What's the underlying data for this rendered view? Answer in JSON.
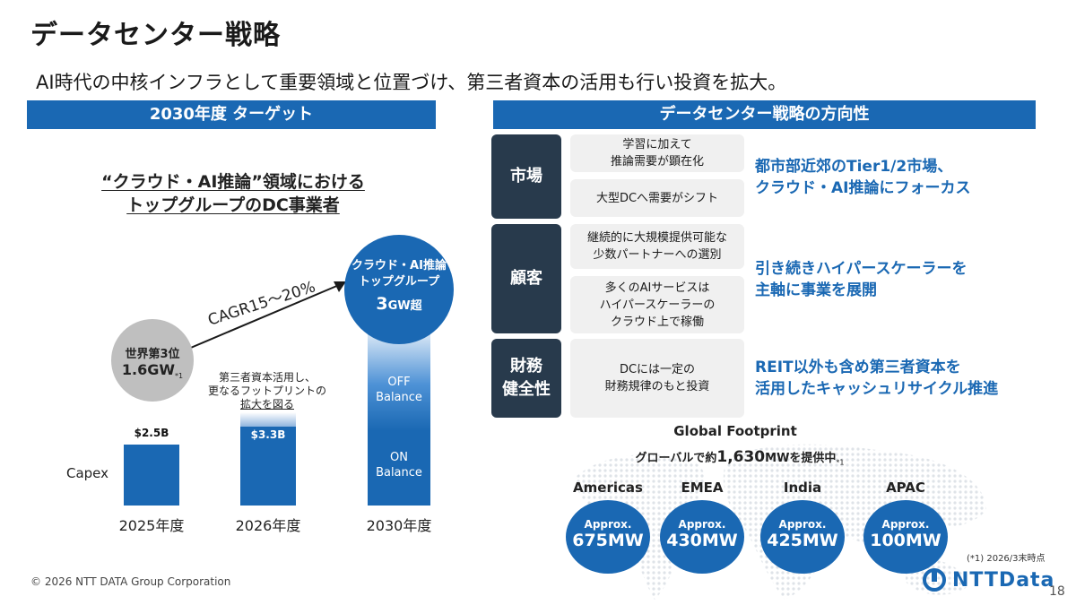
{
  "title": "データセンター戦略",
  "subtitle": "AI時代の中核インフラとして重要領域と位置づけ、第三者資本の活用も行い投資を拡大。",
  "left": {
    "header": "2030年度 ターゲット",
    "heading_line1": "“クラウド・AI推論”領域における",
    "heading_line2": "トップグループのDC事業者",
    "capex_label": "Capex",
    "bars": [
      {
        "year": "2025年度",
        "value_label": "$2.5B"
      },
      {
        "year": "2026年度",
        "value_label": "$3.3B"
      },
      {
        "year": "2030年度"
      }
    ],
    "off_balance": "OFF Balance",
    "on_balance": "ON Balance",
    "grey_circle": {
      "line1": "世界第3位",
      "line2": "1.6GW",
      "note": "*1"
    },
    "blue_circle": {
      "line1": "クラウド・AI推論",
      "line2": "トップグループ",
      "value": "3",
      "unit": "GW超"
    },
    "cagr": "CAGR15～20%",
    "note_2026_line1": "第三者資本活用し、",
    "note_2026_line2": "更なるフットプリントの",
    "note_2026_line3": "拡大を図る"
  },
  "right": {
    "header": "データセンター戦略の方向性",
    "rows": [
      {
        "category": "市場",
        "items": [
          "学習に加えて\n推論需要が顕在化",
          "大型DCへ需要がシフト"
        ],
        "strategy": "都市部近郊のTier1/2市場、\nクラウド・AI推論にフォーカス"
      },
      {
        "category": "顧客",
        "items": [
          "継続的に大規模提供可能な\n少数パートナーへの選別",
          "多くのAIサービスは\nハイパースケーラーの\nクラウド上で稼働"
        ],
        "strategy": "引き続きハイパースケーラーを\n主軸に事業を展開"
      },
      {
        "category": "財務\n健全性",
        "items": [
          "DCには一定の\n財務規律のもと投資"
        ],
        "strategy": "REIT以外も含め第三者資本を\n活用したキャッシュリサイクル推進"
      }
    ]
  },
  "footprint": {
    "title": "Global Footprint",
    "total_prefix": "グローバルで約",
    "total_value": "1,630",
    "total_suffix": "MWを提供中",
    "total_note": "*1",
    "regions": [
      {
        "name": "Americas",
        "approx": "Approx.",
        "value": "675MW"
      },
      {
        "name": "EMEA",
        "approx": "Approx.",
        "value": "430MW"
      },
      {
        "name": "India",
        "approx": "Approx.",
        "value": "425MW"
      },
      {
        "name": "APAC",
        "approx": "Approx.",
        "value": "100MW"
      }
    ]
  },
  "footnote": "(*1) 2026/3末時点",
  "copyright": "© 2026 NTT DATA Group Corporation",
  "logo_text": "NTTData",
  "page_number": "18",
  "colors": {
    "accent": "#1a68b3",
    "category_bg": "#283a4c",
    "box_bg": "#f0f0f0",
    "grey_circle": "#bfbfbf"
  }
}
